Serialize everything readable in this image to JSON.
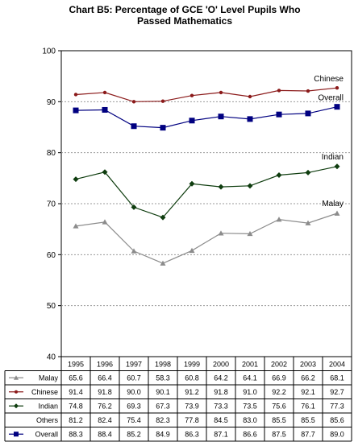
{
  "chart_data": {
    "type": "line",
    "title": "Chart B5: Percentage of GCE 'O' Level Pupils Who\nPassed Mathematics",
    "xlabel": "",
    "ylabel": "",
    "ylim": [
      40,
      100
    ],
    "yticks": [
      40,
      50,
      60,
      70,
      80,
      90,
      100
    ],
    "grid": "horizontal",
    "x": [
      "1995",
      "1996",
      "1997",
      "1998",
      "1999",
      "2000",
      "2001",
      "2002",
      "2003",
      "2004"
    ],
    "series": [
      {
        "name": "Malay",
        "values": [
          65.6,
          66.4,
          60.7,
          58.3,
          60.8,
          64.2,
          64.1,
          66.9,
          66.2,
          68.1
        ],
        "color": "#8c8c8c",
        "marker": "triangle",
        "plotted": true
      },
      {
        "name": "Chinese",
        "values": [
          91.4,
          91.8,
          90.0,
          90.1,
          91.2,
          91.8,
          91.0,
          92.2,
          92.1,
          92.7
        ],
        "color": "#8b1a1a",
        "marker": "circle",
        "plotted": true
      },
      {
        "name": "Indian",
        "values": [
          74.8,
          76.2,
          69.3,
          67.3,
          73.9,
          73.3,
          73.5,
          75.6,
          76.1,
          77.3
        ],
        "color": "#0f3d0f",
        "marker": "diamond",
        "plotted": true
      },
      {
        "name": "Others",
        "values": [
          81.2,
          82.4,
          75.4,
          82.3,
          77.8,
          84.5,
          83.0,
          85.5,
          85.5,
          85.6
        ],
        "color": "#000000",
        "marker": "none",
        "plotted": false
      },
      {
        "name": "Overall",
        "values": [
          88.3,
          88.4,
          85.2,
          84.9,
          86.3,
          87.1,
          86.6,
          87.5,
          87.7,
          89.0
        ],
        "color": "#000080",
        "marker": "square",
        "plotted": true
      }
    ],
    "end_labels": [
      "Chinese",
      "Overall",
      "Indian",
      "Malay"
    ]
  }
}
